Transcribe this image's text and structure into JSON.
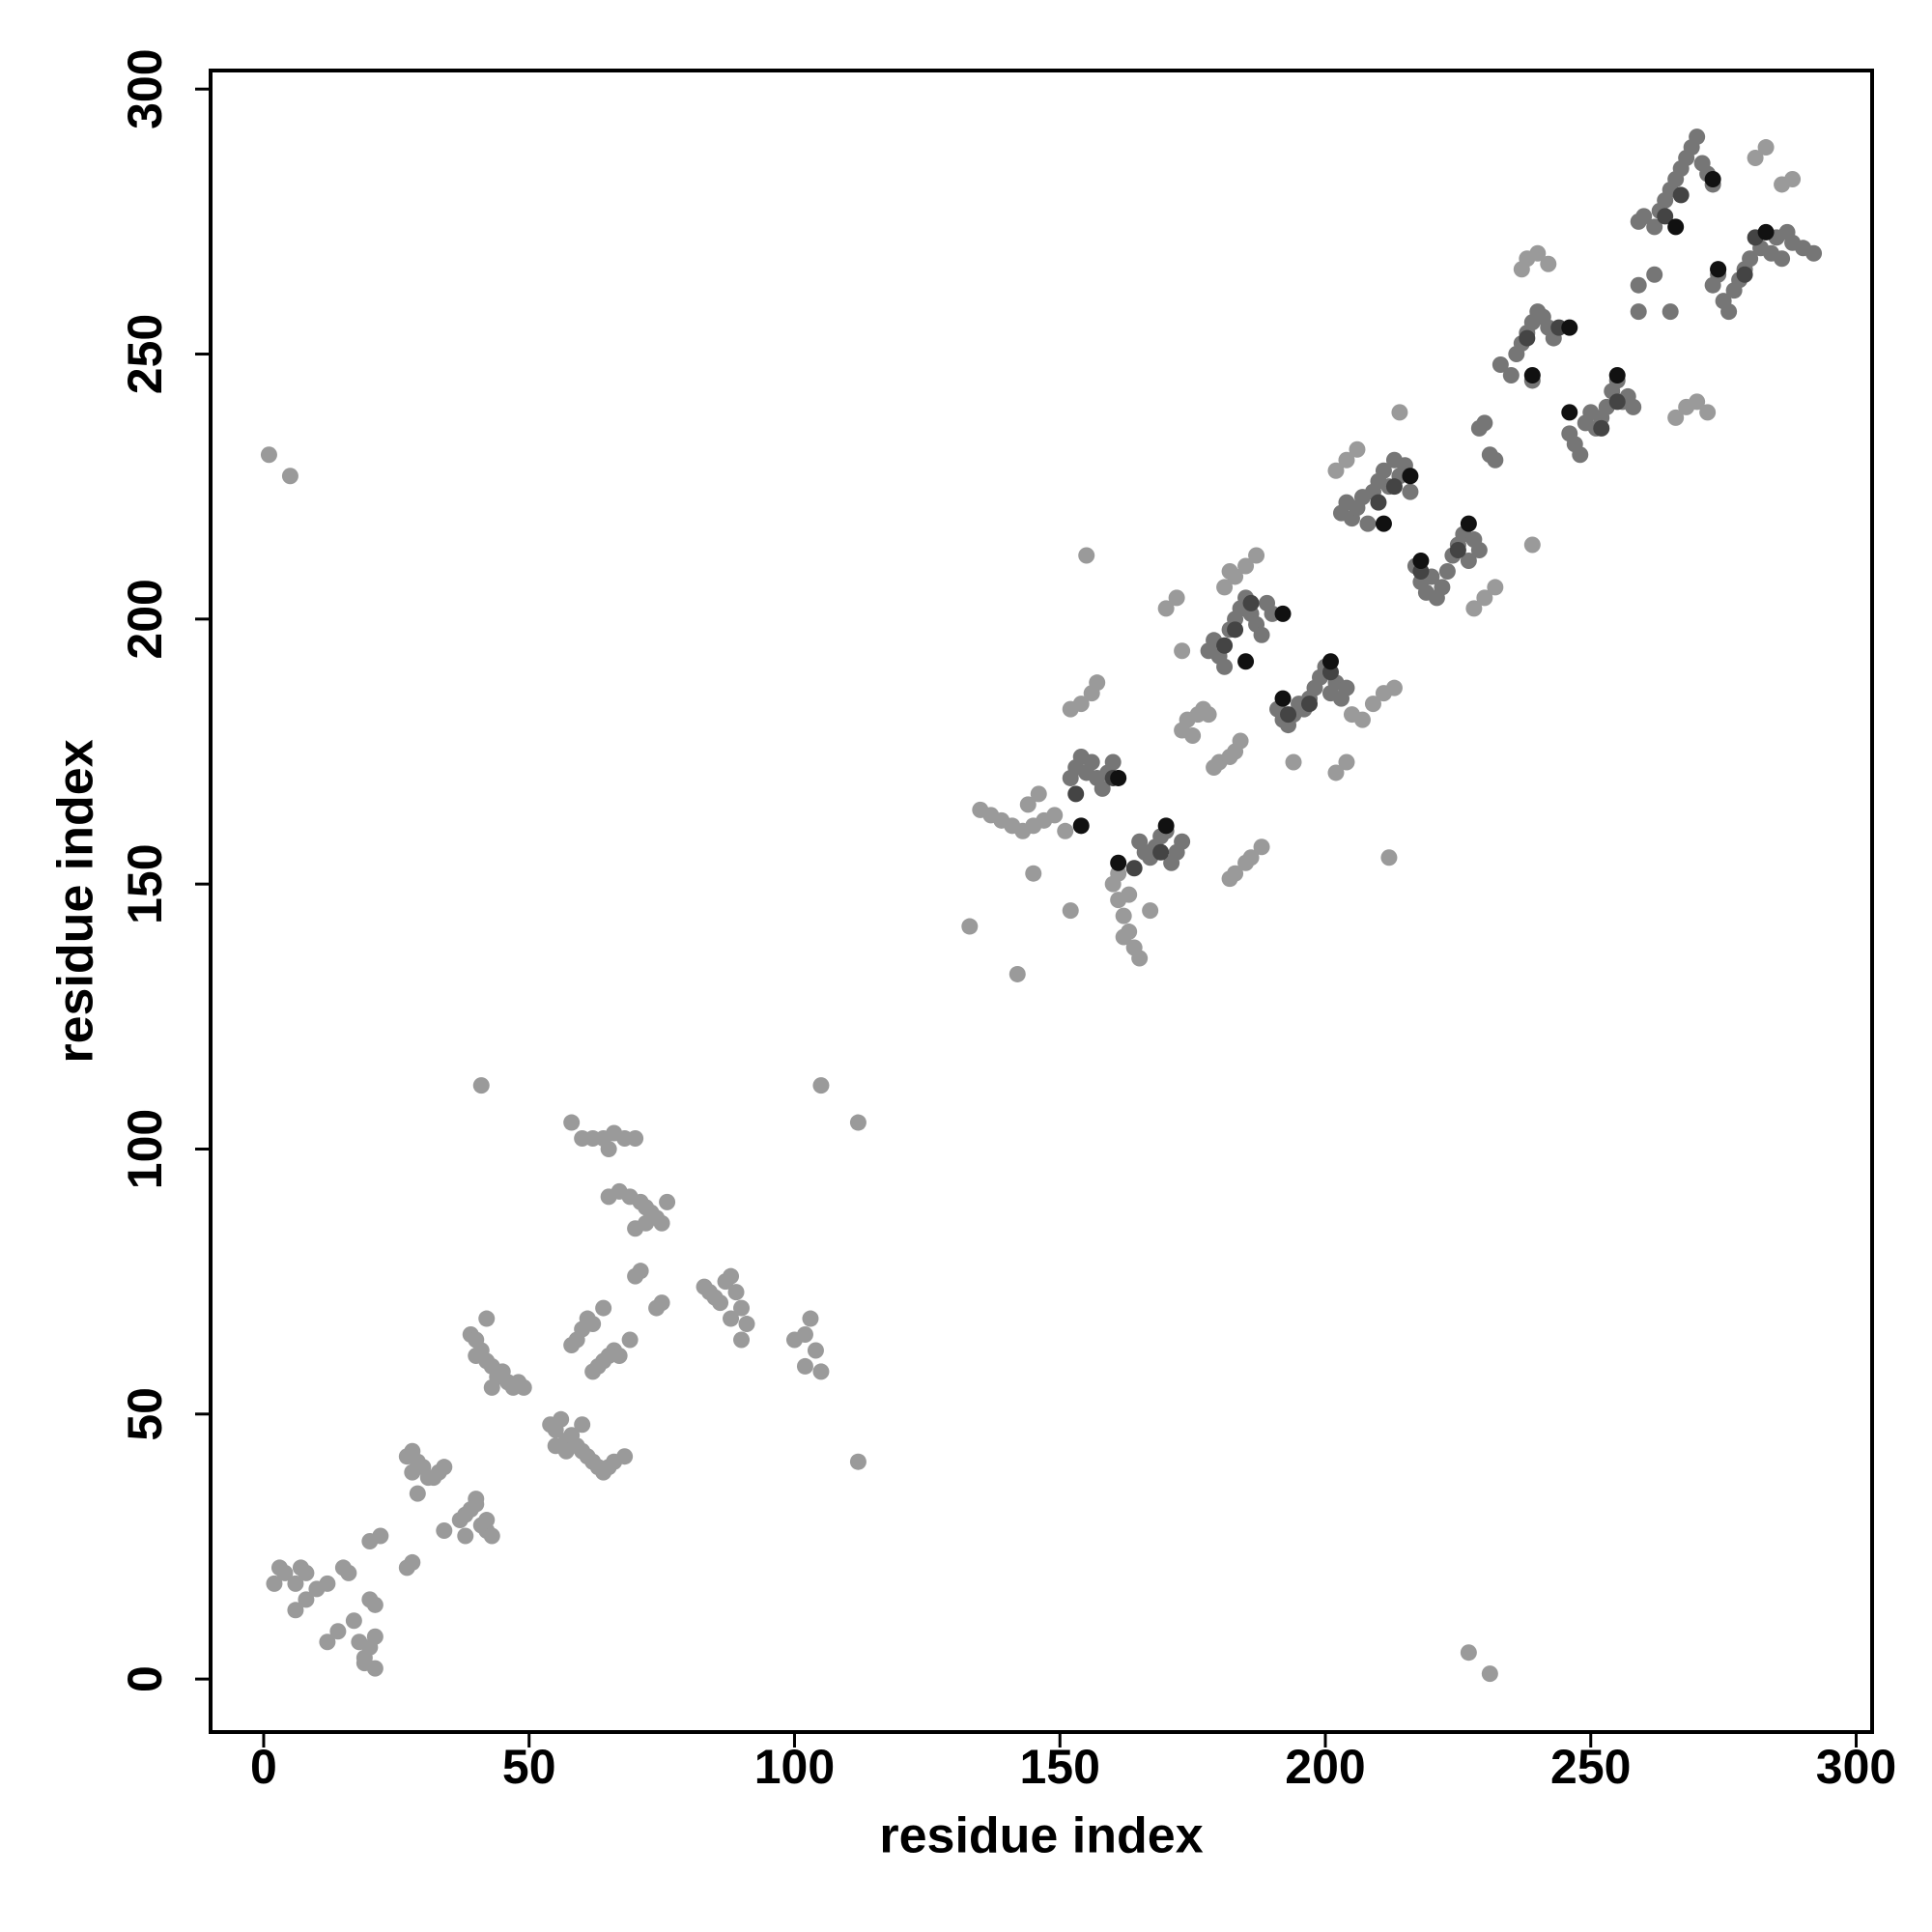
{
  "chart_data": {
    "type": "scatter",
    "xlabel": "residue index",
    "ylabel": "residue index",
    "xlim": [
      -10,
      303
    ],
    "ylim": [
      -10,
      303.5
    ],
    "xticks": [
      0,
      50,
      100,
      150,
      200,
      250,
      300
    ],
    "yticks": [
      0,
      50,
      100,
      150,
      200,
      250,
      300
    ],
    "grid": false,
    "series": [
      {
        "color": "#9a9a9a",
        "x": [
          2,
          4,
          6,
          8,
          3,
          7,
          6,
          8,
          10,
          12,
          12,
          14,
          15,
          16,
          17,
          18,
          19,
          20,
          21,
          19,
          21,
          21,
          20,
          20,
          22,
          27,
          28,
          29,
          30,
          31,
          32,
          33,
          34,
          28,
          27,
          28,
          29,
          34,
          37,
          38,
          39,
          40,
          41,
          42,
          43,
          42,
          38,
          40,
          39,
          40,
          41,
          42,
          43,
          44,
          45,
          46,
          47,
          48,
          49,
          42,
          40,
          43,
          54,
          55,
          56,
          57,
          58,
          59,
          60,
          61,
          62,
          63,
          64,
          65,
          66,
          68,
          55,
          57,
          60,
          58,
          59,
          60,
          61,
          62,
          64,
          62,
          63,
          64,
          65,
          66,
          67,
          69,
          58,
          60,
          62,
          64,
          65,
          66,
          68,
          70,
          65,
          67,
          69,
          71,
          72,
          73,
          74,
          75,
          76,
          70,
          72,
          70,
          71,
          74,
          75,
          83,
          84,
          85,
          86,
          87,
          88,
          89,
          90,
          91,
          90,
          88,
          100,
          102,
          103,
          104,
          102,
          105,
          1,
          5,
          41,
          105,
          112,
          112,
          227,
          231,
          133,
          135,
          137,
          139,
          141,
          143,
          145,
          147,
          149,
          151,
          144,
          142,
          145,
          152,
          146,
          160,
          161,
          162,
          163,
          164,
          165,
          161,
          162,
          163,
          167,
          152,
          154,
          156,
          157,
          155,
          173,
          174,
          176,
          177,
          178,
          175,
          179,
          180,
          182,
          183,
          184,
          183,
          185,
          186,
          188,
          182,
          170,
          172,
          173,
          181,
          183,
          185,
          187,
          182,
          194,
          202,
          204,
          205,
          207,
          209,
          211,
          213,
          212,
          202,
          204,
          206,
          214,
          228,
          230,
          232,
          239,
          237,
          238,
          240,
          242,
          266,
          268,
          270,
          272,
          281,
          283,
          286,
          288
        ],
        "values": [
          18,
          20,
          18,
          20,
          21,
          21,
          13,
          15,
          17,
          18,
          7,
          9,
          21,
          20,
          11,
          7,
          4,
          6,
          8,
          3,
          2,
          14,
          15,
          26,
          27,
          42,
          43,
          41,
          40,
          38,
          38,
          39,
          40,
          39,
          21,
          22,
          35,
          28,
          30,
          31,
          32,
          33,
          29,
          28,
          27,
          30,
          27,
          34,
          65,
          64,
          62,
          60,
          59,
          57,
          58,
          56,
          55,
          56,
          55,
          68,
          61,
          55,
          48,
          47,
          49,
          45,
          46,
          44,
          43,
          42,
          41,
          40,
          39,
          40,
          41,
          42,
          44,
          43,
          48,
          63,
          64,
          66,
          68,
          67,
          70,
          58,
          59,
          60,
          61,
          62,
          61,
          64,
          105,
          102,
          102,
          102,
          100,
          103,
          102,
          102,
          91,
          92,
          91,
          90,
          89,
          88,
          87,
          86,
          90,
          85,
          86,
          76,
          77,
          70,
          71,
          74,
          73,
          72,
          71,
          75,
          76,
          73,
          70,
          67,
          64,
          68,
          64,
          65,
          68,
          62,
          59,
          58,
          231,
          227,
          112,
          112,
          105,
          41,
          5,
          1,
          142,
          164,
          163,
          162,
          161,
          160,
          161,
          162,
          163,
          160,
          165,
          133,
          152,
          145,
          167,
          150,
          147,
          144,
          141,
          138,
          136,
          152,
          140,
          148,
          145,
          183,
          184,
          186,
          188,
          212,
          179,
          181,
          182,
          183,
          182,
          178,
          172,
          173,
          174,
          175,
          177,
          152,
          154,
          155,
          157,
          151,
          202,
          204,
          194,
          206,
          208,
          210,
          212,
          209,
          173,
          171,
          173,
          182,
          181,
          184,
          186,
          187,
          155,
          228,
          230,
          232,
          239,
          202,
          204,
          206,
          214,
          266,
          268,
          269,
          267,
          238,
          240,
          241,
          239,
          287,
          289,
          282,
          283
        ]
      },
      {
        "color": "#767676",
        "x": [
          152,
          153,
          154,
          155,
          156,
          157,
          158,
          159,
          160,
          165,
          166,
          167,
          168,
          169,
          170,
          171,
          172,
          173,
          178,
          179,
          180,
          181,
          182,
          183,
          184,
          185,
          186,
          187,
          188,
          189,
          190,
          191,
          192,
          193,
          194,
          195,
          196,
          197,
          198,
          199,
          200,
          201,
          202,
          203,
          204,
          203,
          204,
          205,
          206,
          207,
          208,
          209,
          210,
          211,
          212,
          213,
          214,
          215,
          216,
          217,
          218,
          219,
          220,
          221,
          222,
          223,
          224,
          225,
          226,
          227,
          228,
          229,
          229,
          230,
          231,
          232,
          233,
          235,
          236,
          237,
          238,
          239,
          240,
          242,
          243,
          241,
          239,
          246,
          247,
          248,
          249,
          250,
          251,
          252,
          253,
          254,
          255,
          256,
          257,
          258,
          259,
          260,
          262,
          263,
          264,
          265,
          266,
          267,
          268,
          269,
          270,
          271,
          272,
          273,
          262,
          265,
          259,
          259,
          273,
          274,
          275,
          276,
          277,
          278,
          279,
          280,
          282,
          284,
          286,
          288,
          290,
          292,
          285,
          287
        ],
        "values": [
          170,
          172,
          174,
          171,
          173,
          170,
          168,
          171,
          173,
          158,
          156,
          155,
          157,
          159,
          160,
          154,
          156,
          158,
          194,
          196,
          193,
          191,
          198,
          200,
          202,
          204,
          201,
          199,
          197,
          203,
          201,
          183,
          181,
          180,
          182,
          184,
          183,
          185,
          187,
          189,
          191,
          186,
          188,
          185,
          187,
          220,
          222,
          219,
          221,
          223,
          218,
          224,
          226,
          228,
          225,
          230,
          227,
          229,
          224,
          210,
          207,
          205,
          208,
          204,
          206,
          209,
          212,
          214,
          216,
          211,
          215,
          213,
          236,
          237,
          231,
          230,
          248,
          246,
          250,
          252,
          254,
          256,
          258,
          255,
          253,
          257,
          245,
          235,
          233,
          231,
          237,
          239,
          236,
          238,
          240,
          243,
          245,
          241,
          242,
          240,
          275,
          276,
          274,
          277,
          279,
          281,
          283,
          285,
          287,
          289,
          291,
          286,
          284,
          282,
          265,
          258,
          258,
          263,
          263,
          265,
          260,
          258,
          262,
          264,
          266,
          268,
          270,
          269,
          268,
          271,
          270,
          269,
          272,
          273
        ]
      },
      {
        "color": "#444444",
        "x": [
          153,
          160,
          164,
          169,
          181,
          183,
          186,
          193,
          197,
          201,
          210,
          213,
          218,
          225,
          238,
          244,
          252,
          255,
          264,
          267,
          274,
          279,
          281
        ],
        "values": [
          167,
          170,
          153,
          156,
          195,
          198,
          203,
          182,
          184,
          190,
          222,
          225,
          209,
          213,
          253,
          255,
          236,
          241,
          276,
          280,
          266,
          265,
          272
        ]
      },
      {
        "color": "#111111",
        "x": [
          154,
          161,
          161,
          170,
          185,
          192,
          192,
          201,
          211,
          218,
          216,
          227,
          239,
          246,
          246,
          255,
          266,
          274,
          273,
          283
        ],
        "values": [
          161,
          170,
          154,
          161,
          192,
          185,
          201,
          192,
          218,
          211,
          227,
          218,
          246,
          239,
          255,
          246,
          274,
          266,
          283,
          273
        ]
      }
    ]
  }
}
